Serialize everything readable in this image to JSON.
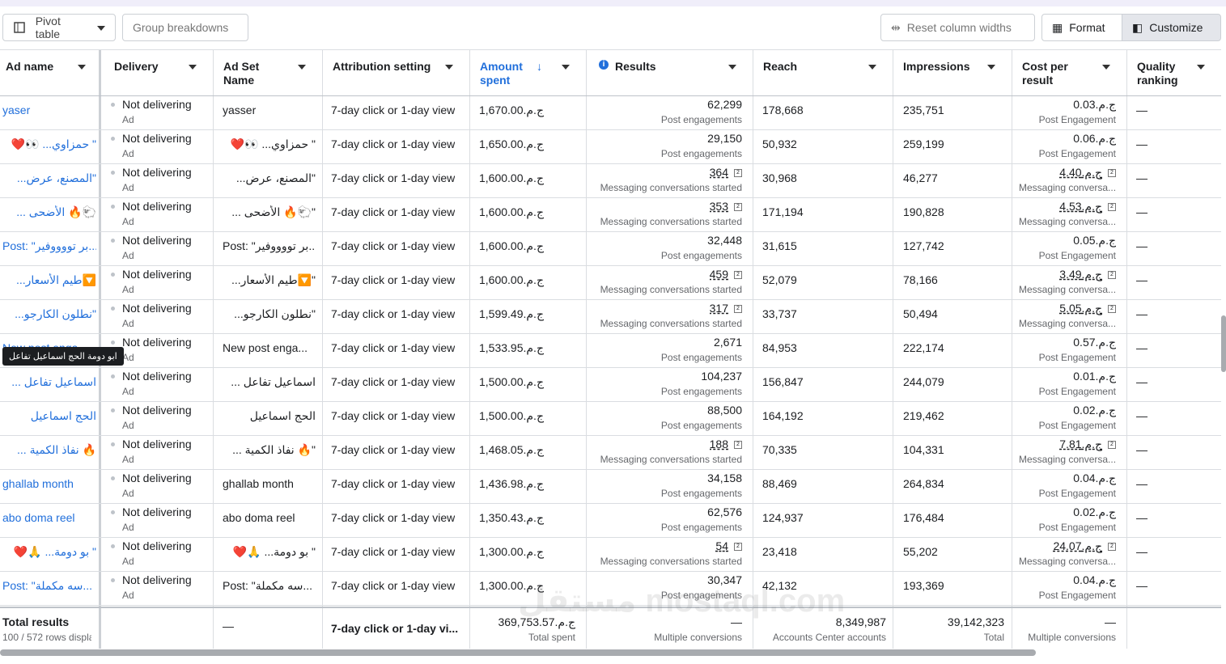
{
  "toolbar": {
    "pivot_table": "Pivot table",
    "group_breakdowns": "Group breakdowns",
    "reset_column_widths": "Reset column widths",
    "format": "Format",
    "customize": "Customize"
  },
  "table": {
    "columns": [
      "Ad name",
      "Delivery",
      "Ad Set Name",
      "Attribution setting",
      "Amount spent",
      "Results",
      "Reach",
      "Impressions",
      "Cost per result",
      "Quality ranking"
    ],
    "rows": [
      {
        "ad_name": "yaser",
        "delivery": "Not delivering",
        "delivery_sub": "Ad",
        "ad_set": "yasser",
        "attribution": "7-day click or 1-day view",
        "amount_spent": "ج.م.1,670.00",
        "results": "62,299",
        "results_label": "Post engagements",
        "reach": "178,668",
        "impressions": "235,751",
        "cost_per_result": "ج.م.0.03",
        "cost_label": "Post Engagement",
        "quality": "—"
      },
      {
        "ad_name": "\" حمزاوي... 👀❤️",
        "delivery": "Not delivering",
        "delivery_sub": "Ad",
        "ad_set": "\" حمزاوي... 👀❤️",
        "attribution": "7-day click or 1-day view",
        "amount_spent": "ج.م.1,650.00",
        "results": "29,150",
        "results_label": "Post engagements",
        "reach": "50,932",
        "impressions": "259,199",
        "cost_per_result": "ج.م.0.06",
        "cost_label": "Post Engagement",
        "quality": "—"
      },
      {
        "ad_name": "\"المصنع، عرض...",
        "delivery": "Not delivering",
        "delivery_sub": "Ad",
        "ad_set": "\"المصنع، عرض...",
        "attribution": "7-day click or 1-day view",
        "amount_spent": "ج.م.1,600.00",
        "results": "364",
        "results_label": "Messaging conversations started",
        "reach": "30,968",
        "impressions": "46,277",
        "cost_per_result": "ج.م.4.40",
        "cost_label": "Messaging conversa...",
        "quality": "—"
      },
      {
        "ad_name": "🐑🔥 الأضحى ...",
        "delivery": "Not delivering",
        "delivery_sub": "Ad",
        "ad_set": "\"🐑🔥 الأضحى ...",
        "attribution": "7-day click or 1-day view",
        "amount_spent": "ج.م.1,600.00",
        "results": "353",
        "results_label": "Messaging conversations started",
        "reach": "171,194",
        "impressions": "190,828",
        "cost_per_result": "ج.م.4.53",
        "cost_label": "Messaging conversa...",
        "quality": "—"
      },
      {
        "ad_name": "Post: \"بر تووووفير...",
        "delivery": "Not delivering",
        "delivery_sub": "Ad",
        "ad_set": "Post: \"بر تووووفير...",
        "attribution": "7-day click or 1-day view",
        "amount_spent": "ج.م.1,600.00",
        "results": "32,448",
        "results_label": "Post engagements",
        "reach": "31,615",
        "impressions": "127,742",
        "cost_per_result": "ج.م.0.05",
        "cost_label": "Post Engagement",
        "quality": "—"
      },
      {
        "ad_name": "🔽طيم الأسعار...",
        "delivery": "Not delivering",
        "delivery_sub": "Ad",
        "ad_set": "\"🔽طيم الأسعار...",
        "attribution": "7-day click or 1-day view",
        "amount_spent": "ج.م.1,600.00",
        "results": "459",
        "results_label": "Messaging conversations started",
        "reach": "52,079",
        "impressions": "78,166",
        "cost_per_result": "ج.م.3.49",
        "cost_label": "Messaging conversa...",
        "quality": "—"
      },
      {
        "ad_name": "\"نطلون الكارجو...",
        "delivery": "Not delivering",
        "delivery_sub": "Ad",
        "ad_set": "\"نطلون الكارجو...",
        "attribution": "7-day click or 1-day view",
        "amount_spent": "ج.م.1,599.49",
        "results": "317",
        "results_label": "Messaging conversations started",
        "reach": "33,737",
        "impressions": "50,494",
        "cost_per_result": "ج.م.5.05",
        "cost_label": "Messaging conversa...",
        "quality": "—"
      },
      {
        "ad_name": "New post enga...",
        "delivery": "Not delivering",
        "delivery_sub": "Ad",
        "ad_set": "New post enga...",
        "attribution": "7-day click or 1-day view",
        "amount_spent": "ج.م.1,533.95",
        "results": "2,671",
        "results_label": "Post engagements",
        "reach": "84,953",
        "impressions": "222,174",
        "cost_per_result": "ج.م.0.57",
        "cost_label": "Post Engagement",
        "quality": "—"
      },
      {
        "ad_name": "اسماعيل تفاعل ...",
        "delivery": "Not delivering",
        "delivery_sub": "Ad",
        "ad_set": "اسماعيل تفاعل ...",
        "attribution": "7-day click or 1-day view",
        "amount_spent": "ج.م.1,500.00",
        "results": "104,237",
        "results_label": "Post engagements",
        "reach": "156,847",
        "impressions": "244,079",
        "cost_per_result": "ج.م.0.01",
        "cost_label": "Post Engagement",
        "quality": "—"
      },
      {
        "ad_name": "الحج اسماعيل",
        "delivery": "Not delivering",
        "delivery_sub": "Ad",
        "ad_set": "الحج اسماعيل",
        "attribution": "7-day click or 1-day view",
        "amount_spent": "ج.م.1,500.00",
        "results": "88,500",
        "results_label": "Post engagements",
        "reach": "164,192",
        "impressions": "219,462",
        "cost_per_result": "ج.م.0.02",
        "cost_label": "Post Engagement",
        "quality": "—"
      },
      {
        "ad_name": "🔥 نفاذ الكمية ...",
        "delivery": "Not delivering",
        "delivery_sub": "Ad",
        "ad_set": "\"🔥 نفاذ الكمية ...",
        "attribution": "7-day click or 1-day view",
        "amount_spent": "ج.م.1,468.05",
        "results": "188",
        "results_label": "Messaging conversations started",
        "reach": "70,335",
        "impressions": "104,331",
        "cost_per_result": "ج.م.7.81",
        "cost_label": "Messaging conversa...",
        "quality": "—"
      },
      {
        "ad_name": "ghallab month",
        "delivery": "Not delivering",
        "delivery_sub": "Ad",
        "ad_set": "ghallab month",
        "attribution": "7-day click or 1-day view",
        "amount_spent": "ج.م.1,436.98",
        "results": "34,158",
        "results_label": "Post engagements",
        "reach": "88,469",
        "impressions": "264,834",
        "cost_per_result": "ج.م.0.04",
        "cost_label": "Post Engagement",
        "quality": "—"
      },
      {
        "ad_name": "abo doma reel",
        "delivery": "Not delivering",
        "delivery_sub": "Ad",
        "ad_set": "abo doma reel",
        "attribution": "7-day click or 1-day view",
        "amount_spent": "ج.م.1,350.43",
        "results": "62,576",
        "results_label": "Post engagements",
        "reach": "124,937",
        "impressions": "176,484",
        "cost_per_result": "ج.م.0.02",
        "cost_label": "Post Engagement",
        "quality": "—"
      },
      {
        "ad_name": "\" بو دومة... 🙏❤️",
        "delivery": "Not delivering",
        "delivery_sub": "Ad",
        "ad_set": "\" بو دومة... 🙏❤️",
        "attribution": "7-day click or 1-day view",
        "amount_spent": "ج.م.1,300.00",
        "results": "54",
        "results_label": "Messaging conversations started",
        "reach": "23,418",
        "impressions": "55,202",
        "cost_per_result": "ج.م.24.07",
        "cost_label": "Messaging conversa...",
        "quality": "—"
      },
      {
        "ad_name": "Post: \"سه مكملة...",
        "delivery": "Not delivering",
        "delivery_sub": "Ad",
        "ad_set": "Post: \"سه مكملة...",
        "attribution": "7-day click or 1-day view",
        "amount_spent": "ج.م.1,300.00",
        "results": "30,347",
        "results_label": "Post engagements",
        "reach": "42,132",
        "impressions": "193,369",
        "cost_per_result": "ج.م.0.04",
        "cost_label": "Post Engagement",
        "quality": "—"
      }
    ],
    "totals": {
      "label": "Total results",
      "rows_displayed": "100 / 572 rows displa",
      "ad_set": "—",
      "attribution": "7-day click or 1-day vi...",
      "amount_spent": "ج.م.369,753.57",
      "amount_label": "Total spent",
      "results": "—",
      "results_label": "Multiple conversions",
      "reach": "8,349,987",
      "reach_label": "Accounts Center accounts",
      "impressions": "39,142,323",
      "impressions_label": "Total",
      "cost_per_result": "—",
      "cost_label": "Multiple conversions"
    }
  },
  "tooltip": "ابو دومة الحج اسماعيل تفاعل",
  "watermark": "مستقل mostaql.com"
}
